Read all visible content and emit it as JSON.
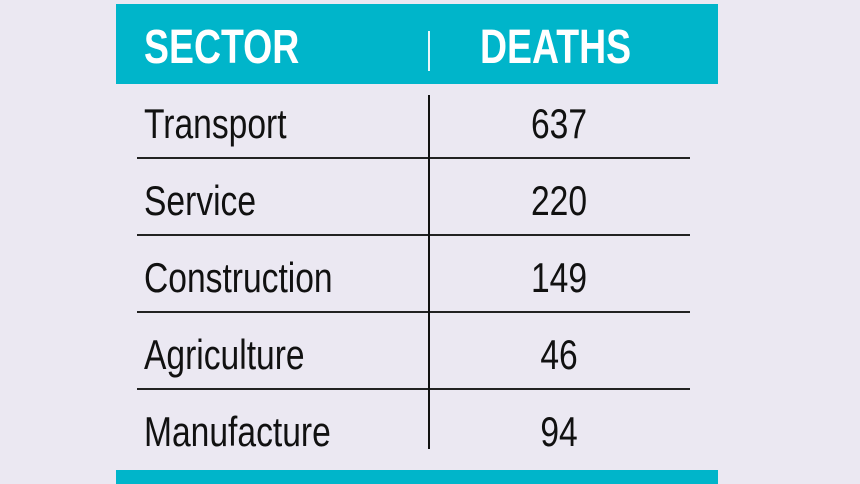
{
  "chart_data": {
    "type": "table",
    "columns": [
      "SECTOR",
      "DEATHS"
    ],
    "rows": [
      [
        "Transport",
        "637"
      ],
      [
        "Service",
        "220"
      ],
      [
        "Construction",
        "149"
      ],
      [
        "Agriculture",
        "46"
      ],
      [
        "Manufacture",
        "94"
      ]
    ],
    "colors": {
      "header": "#00b5ca",
      "background": "#ebe8f2",
      "text": "#111111"
    }
  }
}
